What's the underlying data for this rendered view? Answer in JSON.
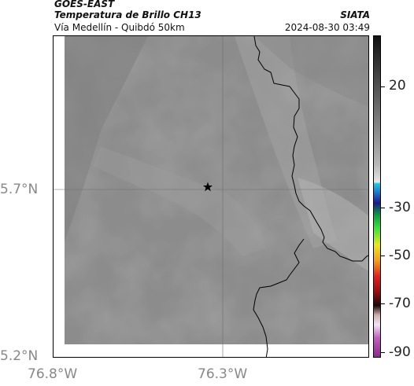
{
  "header": {
    "satellite": "GOES-EAST",
    "product": "Temperatura de Brillo CH13",
    "route": "Vía Medellín - Quibdó 50km",
    "agency": "SIATA",
    "datetime": "2024-08-30 03:49"
  },
  "map": {
    "lat_labels": [
      "5.7°N",
      "5.2°N"
    ],
    "lon_labels": [
      "76.8°W",
      "76.3°W"
    ],
    "marker": "star-icon",
    "gridlines": true,
    "colors": {
      "cloud_base": "#8a8a8a",
      "cloud_light": "#a8a8a8",
      "cloud_dark": "#7a7a7a",
      "coastline": "#000000"
    }
  },
  "colorbar": {
    "tick_labels": [
      "20",
      "-30",
      "-50",
      "-70",
      "-90"
    ]
  }
}
